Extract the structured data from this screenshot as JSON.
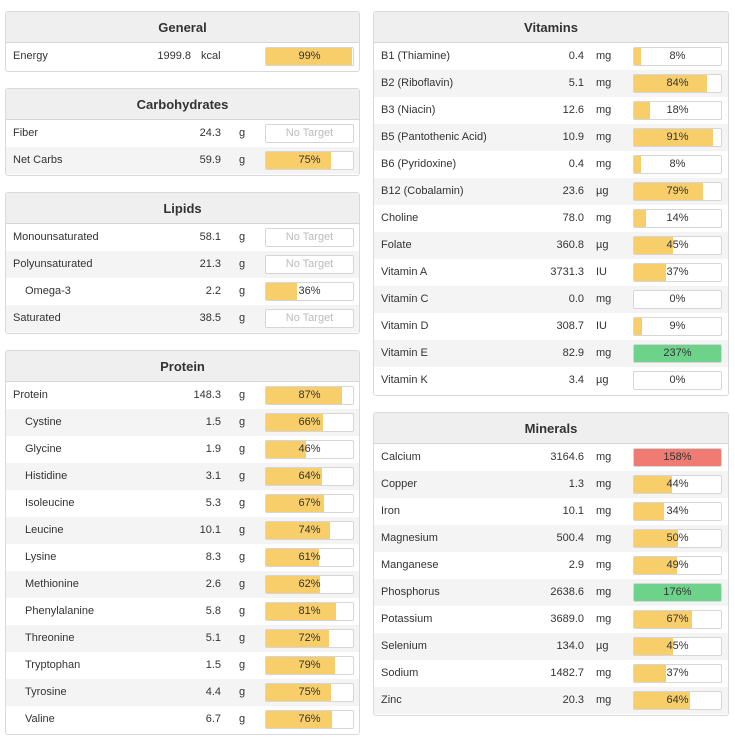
{
  "colors": {
    "fill_normal": "#f8ce6b",
    "fill_high": "#6dd38b",
    "fill_over": "#ef7b72"
  },
  "sections": [
    {
      "id": "general",
      "title": "General",
      "rows": [
        {
          "name": "Energy",
          "value": "1999.8",
          "unit": "kcal",
          "pct": 99,
          "label": "99%",
          "status": "normal"
        }
      ]
    },
    {
      "id": "carbohydrates",
      "title": "Carbohydrates",
      "rows": [
        {
          "name": "Fiber",
          "value": "24.3",
          "unit": "g",
          "pct": 0,
          "label": "No Target",
          "status": "none"
        },
        {
          "name": "Net Carbs",
          "value": "59.9",
          "unit": "g",
          "pct": 75,
          "label": "75%",
          "status": "normal"
        }
      ]
    },
    {
      "id": "lipids",
      "title": "Lipids",
      "rows": [
        {
          "name": "Monounsaturated",
          "value": "58.1",
          "unit": "g",
          "pct": 0,
          "label": "No Target",
          "status": "none"
        },
        {
          "name": "Polyunsaturated",
          "value": "21.3",
          "unit": "g",
          "pct": 0,
          "label": "No Target",
          "status": "none"
        },
        {
          "name": "Omega-3",
          "value": "2.2",
          "unit": "g",
          "pct": 36,
          "label": "36%",
          "status": "normal",
          "indent": true
        },
        {
          "name": "Saturated",
          "value": "38.5",
          "unit": "g",
          "pct": 0,
          "label": "No Target",
          "status": "none"
        }
      ]
    },
    {
      "id": "protein",
      "title": "Protein",
      "rows": [
        {
          "name": "Protein",
          "value": "148.3",
          "unit": "g",
          "pct": 87,
          "label": "87%",
          "status": "normal"
        },
        {
          "name": "Cystine",
          "value": "1.5",
          "unit": "g",
          "pct": 66,
          "label": "66%",
          "status": "normal",
          "indent": true
        },
        {
          "name": "Glycine",
          "value": "1.9",
          "unit": "g",
          "pct": 46,
          "label": "46%",
          "status": "normal",
          "indent": true
        },
        {
          "name": "Histidine",
          "value": "3.1",
          "unit": "g",
          "pct": 64,
          "label": "64%",
          "status": "normal",
          "indent": true
        },
        {
          "name": "Isoleucine",
          "value": "5.3",
          "unit": "g",
          "pct": 67,
          "label": "67%",
          "status": "normal",
          "indent": true
        },
        {
          "name": "Leucine",
          "value": "10.1",
          "unit": "g",
          "pct": 74,
          "label": "74%",
          "status": "normal",
          "indent": true
        },
        {
          "name": "Lysine",
          "value": "8.3",
          "unit": "g",
          "pct": 61,
          "label": "61%",
          "status": "normal",
          "indent": true
        },
        {
          "name": "Methionine",
          "value": "2.6",
          "unit": "g",
          "pct": 62,
          "label": "62%",
          "status": "normal",
          "indent": true
        },
        {
          "name": "Phenylalanine",
          "value": "5.8",
          "unit": "g",
          "pct": 81,
          "label": "81%",
          "status": "normal",
          "indent": true
        },
        {
          "name": "Threonine",
          "value": "5.1",
          "unit": "g",
          "pct": 72,
          "label": "72%",
          "status": "normal",
          "indent": true
        },
        {
          "name": "Tryptophan",
          "value": "1.5",
          "unit": "g",
          "pct": 79,
          "label": "79%",
          "status": "normal",
          "indent": true
        },
        {
          "name": "Tyrosine",
          "value": "4.4",
          "unit": "g",
          "pct": 75,
          "label": "75%",
          "status": "normal",
          "indent": true
        },
        {
          "name": "Valine",
          "value": "6.7",
          "unit": "g",
          "pct": 76,
          "label": "76%",
          "status": "normal",
          "indent": true
        }
      ]
    },
    {
      "id": "vitamins",
      "title": "Vitamins",
      "rows": [
        {
          "name": "B1 (Thiamine)",
          "value": "0.4",
          "unit": "mg",
          "pct": 8,
          "label": "8%",
          "status": "normal"
        },
        {
          "name": "B2 (Riboflavin)",
          "value": "5.1",
          "unit": "mg",
          "pct": 84,
          "label": "84%",
          "status": "normal"
        },
        {
          "name": "B3 (Niacin)",
          "value": "12.6",
          "unit": "mg",
          "pct": 18,
          "label": "18%",
          "status": "normal"
        },
        {
          "name": "B5 (Pantothenic Acid)",
          "value": "10.9",
          "unit": "mg",
          "pct": 91,
          "label": "91%",
          "status": "normal"
        },
        {
          "name": "B6 (Pyridoxine)",
          "value": "0.4",
          "unit": "mg",
          "pct": 8,
          "label": "8%",
          "status": "normal"
        },
        {
          "name": "B12 (Cobalamin)",
          "value": "23.6",
          "unit": "µg",
          "pct": 79,
          "label": "79%",
          "status": "normal"
        },
        {
          "name": "Choline",
          "value": "78.0",
          "unit": "mg",
          "pct": 14,
          "label": "14%",
          "status": "normal"
        },
        {
          "name": "Folate",
          "value": "360.8",
          "unit": "µg",
          "pct": 45,
          "label": "45%",
          "status": "normal"
        },
        {
          "name": "Vitamin A",
          "value": "3731.3",
          "unit": "IU",
          "pct": 37,
          "label": "37%",
          "status": "normal"
        },
        {
          "name": "Vitamin C",
          "value": "0.0",
          "unit": "mg",
          "pct": 0,
          "label": "0%",
          "status": "normal"
        },
        {
          "name": "Vitamin D",
          "value": "308.7",
          "unit": "IU",
          "pct": 9,
          "label": "9%",
          "status": "normal"
        },
        {
          "name": "Vitamin E",
          "value": "82.9",
          "unit": "mg",
          "pct": 237,
          "label": "237%",
          "status": "high"
        },
        {
          "name": "Vitamin K",
          "value": "3.4",
          "unit": "µg",
          "pct": 0,
          "label": "0%",
          "status": "normal"
        }
      ]
    },
    {
      "id": "minerals",
      "title": "Minerals",
      "rows": [
        {
          "name": "Calcium",
          "value": "3164.6",
          "unit": "mg",
          "pct": 158,
          "label": "158%",
          "status": "over"
        },
        {
          "name": "Copper",
          "value": "1.3",
          "unit": "mg",
          "pct": 44,
          "label": "44%",
          "status": "normal"
        },
        {
          "name": "Iron",
          "value": "10.1",
          "unit": "mg",
          "pct": 34,
          "label": "34%",
          "status": "normal"
        },
        {
          "name": "Magnesium",
          "value": "500.4",
          "unit": "mg",
          "pct": 50,
          "label": "50%",
          "status": "normal"
        },
        {
          "name": "Manganese",
          "value": "2.9",
          "unit": "mg",
          "pct": 49,
          "label": "49%",
          "status": "normal"
        },
        {
          "name": "Phosphorus",
          "value": "2638.6",
          "unit": "mg",
          "pct": 176,
          "label": "176%",
          "status": "high"
        },
        {
          "name": "Potassium",
          "value": "3689.0",
          "unit": "mg",
          "pct": 67,
          "label": "67%",
          "status": "normal"
        },
        {
          "name": "Selenium",
          "value": "134.0",
          "unit": "µg",
          "pct": 45,
          "label": "45%",
          "status": "normal"
        },
        {
          "name": "Sodium",
          "value": "1482.7",
          "unit": "mg",
          "pct": 37,
          "label": "37%",
          "status": "normal"
        },
        {
          "name": "Zinc",
          "value": "20.3",
          "unit": "mg",
          "pct": 64,
          "label": "64%",
          "status": "normal"
        }
      ]
    }
  ]
}
